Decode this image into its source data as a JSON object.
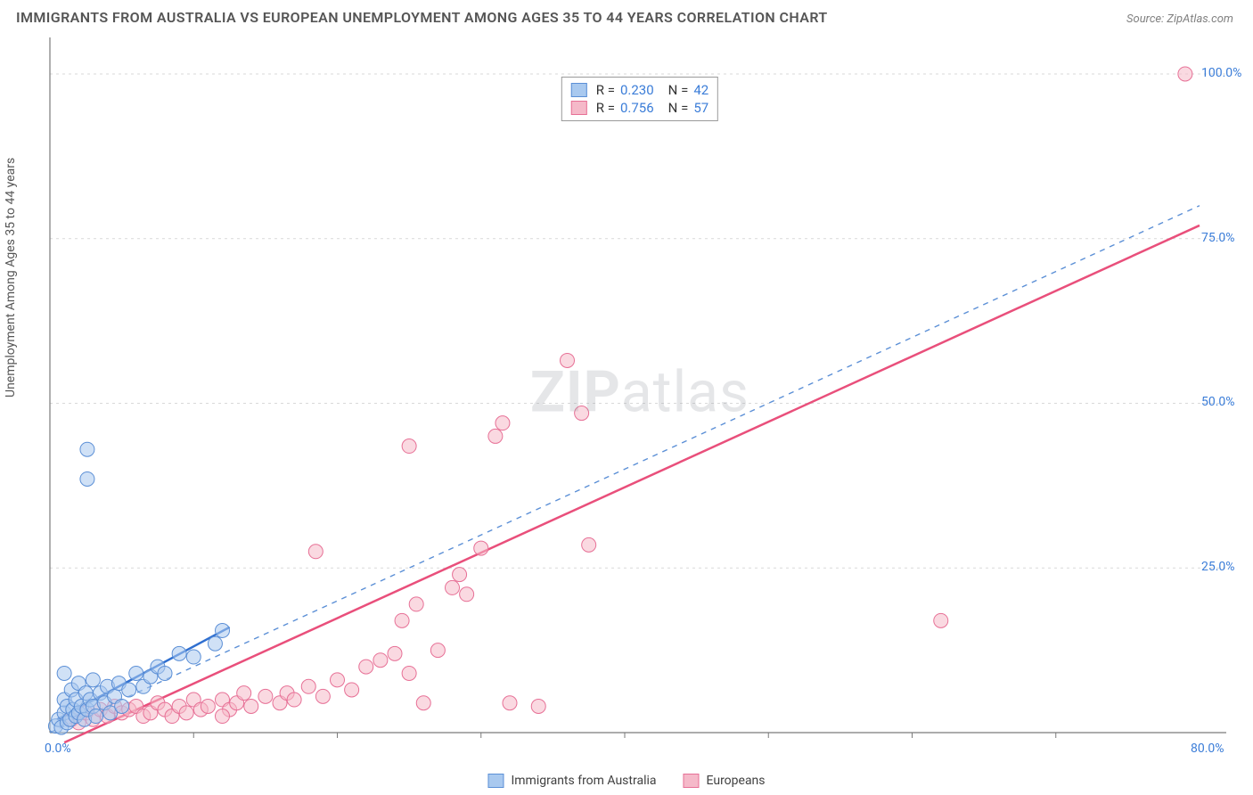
{
  "title": "IMMIGRANTS FROM AUSTRALIA VS EUROPEAN UNEMPLOYMENT AMONG AGES 35 TO 44 YEARS CORRELATION CHART",
  "source": "Source: ZipAtlas.com",
  "watermark_bold": "ZIP",
  "watermark_rest": "atlas",
  "y_axis_label": "Unemployment Among Ages 35 to 44 years",
  "chart": {
    "type": "scatter",
    "xlim": [
      0,
      80
    ],
    "ylim": [
      0,
      105
    ],
    "x_ticks": [
      0,
      80
    ],
    "x_tick_labels": [
      "0.0%",
      "80.0%"
    ],
    "y_ticks": [
      25,
      50,
      75,
      100
    ],
    "y_tick_labels": [
      "25.0%",
      "50.0%",
      "75.0%",
      "100.0%"
    ],
    "grid_color": "#d9d9d9",
    "grid_dash": "3,4",
    "axis_line_color": "#7a7a7a",
    "background_color": "#ffffff",
    "marker_radius": 8,
    "marker_opacity": 0.55,
    "series": [
      {
        "name": "Immigrants from Australia",
        "fill": "#a9c9ef",
        "stroke": "#5b8fd6",
        "line_color": "#2f6fd0",
        "line_width": 2.5,
        "line_dash": "none",
        "diag_dash": "6,6",
        "diag_color": "#5b8fd6",
        "r_value": "0.230",
        "n_value": "42",
        "points": [
          [
            0.4,
            1.0
          ],
          [
            0.6,
            2.0
          ],
          [
            0.8,
            0.8
          ],
          [
            1.0,
            3.0
          ],
          [
            1.0,
            5.0
          ],
          [
            1.2,
            1.5
          ],
          [
            1.2,
            4.0
          ],
          [
            1.4,
            2.0
          ],
          [
            1.5,
            6.5
          ],
          [
            1.6,
            3.5
          ],
          [
            1.8,
            2.5
          ],
          [
            1.8,
            5.0
          ],
          [
            2.0,
            3.0
          ],
          [
            2.0,
            7.5
          ],
          [
            2.2,
            4.0
          ],
          [
            2.4,
            2.0
          ],
          [
            2.5,
            6.0
          ],
          [
            2.6,
            3.5
          ],
          [
            2.8,
            5.0
          ],
          [
            3.0,
            4.0
          ],
          [
            3.0,
            8.0
          ],
          [
            3.2,
            2.5
          ],
          [
            3.5,
            6.0
          ],
          [
            3.8,
            4.5
          ],
          [
            4.0,
            7.0
          ],
          [
            4.2,
            3.0
          ],
          [
            4.5,
            5.5
          ],
          [
            4.8,
            7.5
          ],
          [
            5.0,
            4.0
          ],
          [
            5.5,
            6.5
          ],
          [
            6.0,
            9.0
          ],
          [
            6.5,
            7.0
          ],
          [
            7.0,
            8.5
          ],
          [
            7.5,
            10.0
          ],
          [
            8.0,
            9.0
          ],
          [
            9.0,
            12.0
          ],
          [
            10.0,
            11.5
          ],
          [
            11.5,
            13.5
          ],
          [
            12.0,
            15.5
          ],
          [
            2.6,
            43.0
          ],
          [
            2.6,
            38.5
          ],
          [
            1.0,
            9.0
          ]
        ],
        "regression": {
          "x1": 0.5,
          "y1": 2.0,
          "x2": 12.5,
          "y2": 16.0
        },
        "diagonal": {
          "x1": 0.0,
          "y1": 0.0,
          "x2": 80.0,
          "y2": 80.0
        }
      },
      {
        "name": "Europeans",
        "fill": "#f5b9c9",
        "stroke": "#e77096",
        "line_color": "#e94f7b",
        "line_width": 2.5,
        "line_dash": "none",
        "r_value": "0.756",
        "n_value": "57",
        "points": [
          [
            1.5,
            2.0
          ],
          [
            2.0,
            1.5
          ],
          [
            2.5,
            3.0
          ],
          [
            3.0,
            2.0
          ],
          [
            3.5,
            3.5
          ],
          [
            4.0,
            2.5
          ],
          [
            4.5,
            4.0
          ],
          [
            5.0,
            3.0
          ],
          [
            5.5,
            3.5
          ],
          [
            6.0,
            4.0
          ],
          [
            6.5,
            2.5
          ],
          [
            7.0,
            3.0
          ],
          [
            7.5,
            4.5
          ],
          [
            8.0,
            3.5
          ],
          [
            8.5,
            2.5
          ],
          [
            9.0,
            4.0
          ],
          [
            9.5,
            3.0
          ],
          [
            10.0,
            5.0
          ],
          [
            10.5,
            3.5
          ],
          [
            11.0,
            4.0
          ],
          [
            12.0,
            5.0
          ],
          [
            12.5,
            3.5
          ],
          [
            13.0,
            4.5
          ],
          [
            13.5,
            6.0
          ],
          [
            14.0,
            4.0
          ],
          [
            15.0,
            5.5
          ],
          [
            16.0,
            4.5
          ],
          [
            16.5,
            6.0
          ],
          [
            17.0,
            5.0
          ],
          [
            18.0,
            7.0
          ],
          [
            19.0,
            5.5
          ],
          [
            20.0,
            8.0
          ],
          [
            21.0,
            6.5
          ],
          [
            22.0,
            10.0
          ],
          [
            23.0,
            11.0
          ],
          [
            24.0,
            12.0
          ],
          [
            24.5,
            17.0
          ],
          [
            25.0,
            9.0
          ],
          [
            25.5,
            19.5
          ],
          [
            26.0,
            4.5
          ],
          [
            27.0,
            12.5
          ],
          [
            28.0,
            22.0
          ],
          [
            28.5,
            24.0
          ],
          [
            29.0,
            21.0
          ],
          [
            32.0,
            4.5
          ],
          [
            34.0,
            4.0
          ],
          [
            30.0,
            28.0
          ],
          [
            25.0,
            43.5
          ],
          [
            31.0,
            45.0
          ],
          [
            31.5,
            47.0
          ],
          [
            37.0,
            48.5
          ],
          [
            37.5,
            28.5
          ],
          [
            36.0,
            56.5
          ],
          [
            62.0,
            17.0
          ],
          [
            79.0,
            100.0
          ],
          [
            18.5,
            27.5
          ],
          [
            12.0,
            2.5
          ]
        ],
        "regression": {
          "x1": 1.0,
          "y1": -1.5,
          "x2": 80.0,
          "y2": 77.0
        }
      }
    ]
  },
  "legend_bottom": {
    "items": [
      "Immigrants from Australia",
      "Europeans"
    ]
  }
}
